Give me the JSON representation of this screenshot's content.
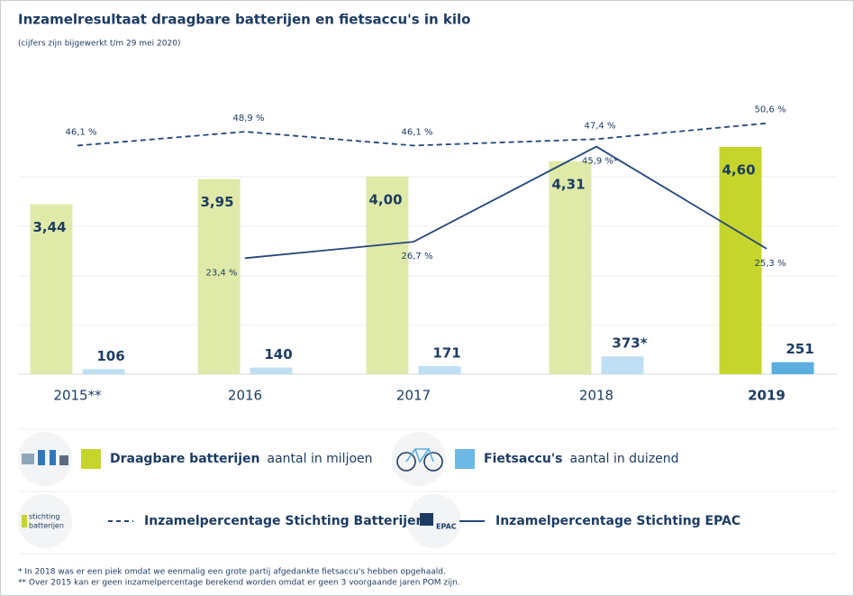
{
  "chart_data": {
    "type": "bar",
    "title": "Inzamelresultaat draagbare batterijen en fietsaccu's in kilo",
    "subtitle": "(cijfers zijn bijgewerkt t/m 29 mei 2020)",
    "categories": [
      "2015**",
      "2016",
      "2017",
      "2018",
      "2019"
    ],
    "highlight": 4,
    "series": [
      {
        "name": "Draagbare batterijen",
        "description": "aantal in miljoen",
        "type": "bar",
        "color": "#c6d52b",
        "colors": [
          "#e0eaa8",
          "#e0eaa8",
          "#e0eaa8",
          "#e0eaa8",
          "#c6d52b"
        ],
        "values": [
          3.44,
          3.95,
          4.0,
          4.31,
          4.6
        ],
        "value_labels": [
          "3,44",
          "3,95",
          "4,00",
          "4,31",
          "4,60"
        ]
      },
      {
        "name": "Fietsaccu's",
        "description": "aantal in duizend",
        "type": "bar",
        "color": "#6cb9e6",
        "colors": [
          "#bfe0f4",
          "#bfe0f4",
          "#bfe0f4",
          "#bfe0f4",
          "#5aaee0"
        ],
        "values": [
          106,
          140,
          171,
          373,
          251
        ],
        "value_labels": [
          "106",
          "140",
          "171",
          "373*",
          "251"
        ]
      },
      {
        "name": "Inzamelpercentage Stichting Batterijen",
        "type": "line",
        "dashed": true,
        "color": "#23477a",
        "values": [
          46.1,
          48.9,
          46.1,
          47.4,
          50.6
        ],
        "value_labels": [
          "46,1 %",
          "48,9 %",
          "46,1 %",
          "47,4 %",
          "50,6 %"
        ]
      },
      {
        "name": "Inzamelpercentage Stichting EPAC",
        "type": "line",
        "dashed": false,
        "color": "#23477a",
        "values": [
          null,
          23.4,
          26.7,
          45.9,
          25.3
        ],
        "value_labels": [
          null,
          "23,4 %",
          "26,7 %",
          "45,9 %*",
          "25,3 %"
        ]
      }
    ],
    "logos": [
      "stichting",
      "batterijen",
      "EPAC"
    ],
    "footnotes": [
      "*  In 2018 was er een piek omdat we eenmalig een grote partij afgedankte fietsaccu's hebben opgehaald.",
      "** Over 2015 kan er geen inzamelpercentage berekend worden omdat er geen 3 voorgaande jaren POM zijn."
    ]
  }
}
